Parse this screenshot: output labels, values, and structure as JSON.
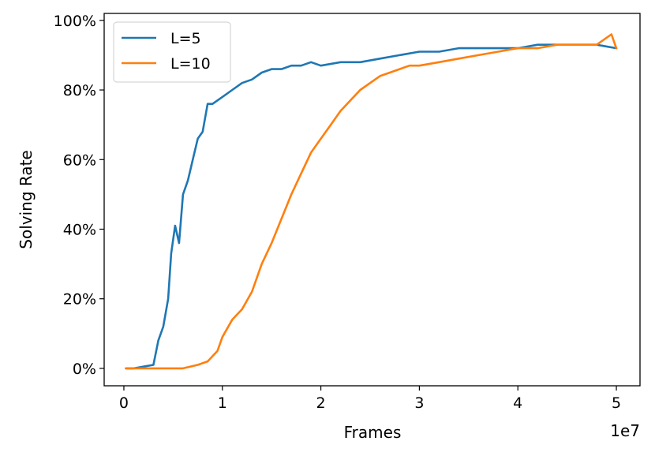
{
  "chart_data": {
    "type": "line",
    "xlabel": "Frames",
    "ylabel": "Solving Rate",
    "x_offset_label": "1e7",
    "xlim": [
      -0.2,
      5.24
    ],
    "ylim": [
      -0.05,
      1.02
    ],
    "x_ticks": [
      0,
      1,
      2,
      3,
      4,
      5
    ],
    "x_tick_labels": [
      "0",
      "1",
      "2",
      "3",
      "4",
      "5"
    ],
    "y_ticks": [
      0,
      0.2,
      0.4,
      0.6,
      0.8,
      1.0
    ],
    "y_tick_labels": [
      "0%",
      "20%",
      "40%",
      "60%",
      "80%",
      "100%"
    ],
    "grid": false,
    "legend_position": "top-left",
    "series": [
      {
        "name": "L=5",
        "color": "#1f77b4",
        "points": [
          [
            0.02,
            0.0
          ],
          [
            0.1,
            0.0
          ],
          [
            0.2,
            0.005
          ],
          [
            0.3,
            0.01
          ],
          [
            0.35,
            0.08
          ],
          [
            0.4,
            0.12
          ],
          [
            0.45,
            0.2
          ],
          [
            0.48,
            0.33
          ],
          [
            0.52,
            0.41
          ],
          [
            0.56,
            0.36
          ],
          [
            0.6,
            0.5
          ],
          [
            0.65,
            0.54
          ],
          [
            0.7,
            0.6
          ],
          [
            0.75,
            0.66
          ],
          [
            0.8,
            0.68
          ],
          [
            0.85,
            0.76
          ],
          [
            0.9,
            0.76
          ],
          [
            1.0,
            0.78
          ],
          [
            1.1,
            0.8
          ],
          [
            1.2,
            0.82
          ],
          [
            1.3,
            0.83
          ],
          [
            1.4,
            0.85
          ],
          [
            1.5,
            0.86
          ],
          [
            1.6,
            0.86
          ],
          [
            1.7,
            0.87
          ],
          [
            1.8,
            0.87
          ],
          [
            1.9,
            0.88
          ],
          [
            2.0,
            0.87
          ],
          [
            2.2,
            0.88
          ],
          [
            2.4,
            0.88
          ],
          [
            2.6,
            0.89
          ],
          [
            2.8,
            0.9
          ],
          [
            3.0,
            0.91
          ],
          [
            3.2,
            0.91
          ],
          [
            3.4,
            0.92
          ],
          [
            3.6,
            0.92
          ],
          [
            3.8,
            0.92
          ],
          [
            4.0,
            0.92
          ],
          [
            4.2,
            0.93
          ],
          [
            4.4,
            0.93
          ],
          [
            4.6,
            0.93
          ],
          [
            4.8,
            0.93
          ],
          [
            5.0,
            0.92
          ]
        ]
      },
      {
        "name": "L=10",
        "color": "#ff7f0e",
        "points": [
          [
            0.02,
            0.0
          ],
          [
            0.2,
            0.0
          ],
          [
            0.4,
            0.0
          ],
          [
            0.6,
            0.0
          ],
          [
            0.75,
            0.01
          ],
          [
            0.85,
            0.02
          ],
          [
            0.95,
            0.05
          ],
          [
            1.0,
            0.09
          ],
          [
            1.1,
            0.14
          ],
          [
            1.2,
            0.17
          ],
          [
            1.3,
            0.22
          ],
          [
            1.4,
            0.3
          ],
          [
            1.5,
            0.36
          ],
          [
            1.6,
            0.43
          ],
          [
            1.7,
            0.5
          ],
          [
            1.8,
            0.56
          ],
          [
            1.9,
            0.62
          ],
          [
            2.0,
            0.66
          ],
          [
            2.1,
            0.7
          ],
          [
            2.2,
            0.74
          ],
          [
            2.3,
            0.77
          ],
          [
            2.4,
            0.8
          ],
          [
            2.5,
            0.82
          ],
          [
            2.6,
            0.84
          ],
          [
            2.7,
            0.85
          ],
          [
            2.8,
            0.86
          ],
          [
            2.9,
            0.87
          ],
          [
            3.0,
            0.87
          ],
          [
            3.2,
            0.88
          ],
          [
            3.4,
            0.89
          ],
          [
            3.6,
            0.9
          ],
          [
            3.8,
            0.91
          ],
          [
            4.0,
            0.92
          ],
          [
            4.2,
            0.92
          ],
          [
            4.4,
            0.93
          ],
          [
            4.6,
            0.93
          ],
          [
            4.8,
            0.93
          ],
          [
            4.95,
            0.96
          ],
          [
            5.0,
            0.92
          ]
        ]
      }
    ]
  }
}
